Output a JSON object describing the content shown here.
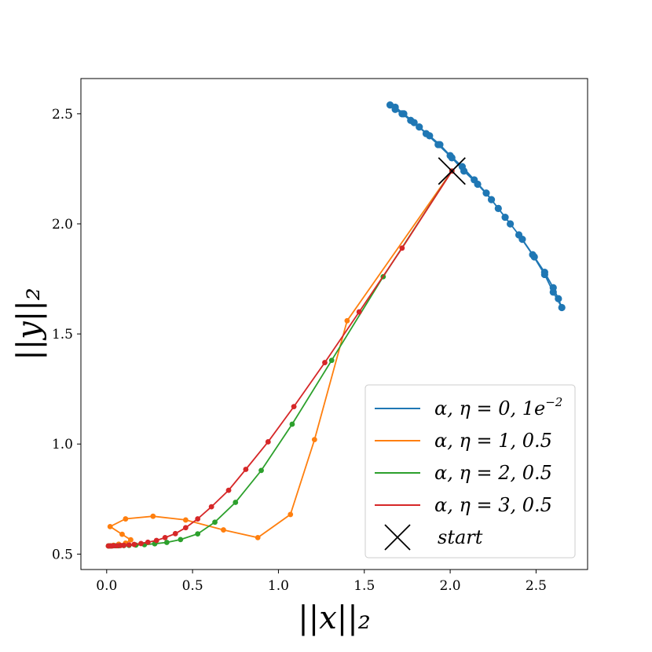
{
  "chart_data": {
    "type": "line",
    "xlabel": "||x||₂",
    "ylabel": "||y||₂",
    "xlim": [
      -0.15,
      2.8
    ],
    "ylim": [
      0.43,
      2.66
    ],
    "xticks": [
      "0.0",
      "0.5",
      "1.0",
      "1.5",
      "2.0",
      "2.5"
    ],
    "xtick_values": [
      0.0,
      0.5,
      1.0,
      1.5,
      2.0,
      2.5
    ],
    "yticks": [
      "0.5",
      "1.0",
      "1.5",
      "2.0",
      "2.5"
    ],
    "ytick_values": [
      0.5,
      1.0,
      1.5,
      2.0,
      2.5
    ],
    "grid": false,
    "legend_position": "lower-right",
    "start_point": {
      "x": 2.01,
      "y": 2.24,
      "label": "start"
    },
    "series": [
      {
        "name": "α, η = 0, 1e⁻²",
        "color": "#1f77b4",
        "markers": true,
        "x": [
          1.65,
          1.68,
          1.72,
          1.77,
          1.82,
          1.88,
          1.94,
          2.0,
          2.07,
          2.14,
          2.21,
          2.28,
          2.35,
          2.42,
          2.49,
          2.55,
          2.6,
          2.63,
          2.65,
          2.6,
          2.55,
          2.48,
          2.4,
          2.32,
          2.24,
          2.16,
          2.08,
          2.01,
          1.93,
          1.86,
          1.79,
          1.73,
          1.68
        ],
        "y": [
          2.54,
          2.52,
          2.5,
          2.47,
          2.44,
          2.4,
          2.36,
          2.31,
          2.26,
          2.2,
          2.14,
          2.07,
          2.0,
          1.93,
          1.85,
          1.78,
          1.71,
          1.66,
          1.62,
          1.69,
          1.77,
          1.86,
          1.95,
          2.03,
          2.11,
          2.18,
          2.24,
          2.3,
          2.36,
          2.41,
          2.46,
          2.5,
          2.53
        ]
      },
      {
        "name": "α, η = 1, 0.5",
        "color": "#ff7f0e",
        "markers": true,
        "x": [
          2.01,
          1.4,
          1.21,
          1.07,
          0.88,
          0.68,
          0.46,
          0.27,
          0.11,
          0.02,
          0.09,
          0.14,
          0.11,
          0.07,
          0.04,
          0.02,
          0.01
        ],
        "y": [
          2.24,
          1.56,
          1.02,
          0.68,
          0.575,
          0.61,
          0.655,
          0.672,
          0.66,
          0.625,
          0.59,
          0.565,
          0.55,
          0.545,
          0.54,
          0.538,
          0.537
        ]
      },
      {
        "name": "α, η = 2, 0.5",
        "color": "#2ca02c",
        "markers": true,
        "x": [
          2.01,
          1.61,
          1.31,
          1.08,
          0.9,
          0.75,
          0.63,
          0.53,
          0.43,
          0.35,
          0.28,
          0.22,
          0.17,
          0.13,
          0.1,
          0.07,
          0.05,
          0.03,
          0.02,
          0.01
        ],
        "y": [
          2.24,
          1.76,
          1.38,
          1.09,
          0.88,
          0.735,
          0.645,
          0.592,
          0.566,
          0.553,
          0.547,
          0.543,
          0.541,
          0.54,
          0.539,
          0.538,
          0.538,
          0.537,
          0.537,
          0.537
        ]
      },
      {
        "name": "α, η = 3, 0.5",
        "color": "#d62728",
        "markers": true,
        "x": [
          2.01,
          1.72,
          1.47,
          1.27,
          1.09,
          0.94,
          0.81,
          0.71,
          0.61,
          0.53,
          0.46,
          0.4,
          0.34,
          0.29,
          0.24,
          0.2,
          0.16,
          0.13,
          0.1,
          0.08,
          0.06,
          0.04,
          0.03,
          0.02,
          0.01
        ],
        "y": [
          2.24,
          1.89,
          1.6,
          1.37,
          1.17,
          1.01,
          0.885,
          0.79,
          0.715,
          0.66,
          0.62,
          0.593,
          0.575,
          0.562,
          0.554,
          0.548,
          0.544,
          0.542,
          0.54,
          0.539,
          0.538,
          0.538,
          0.537,
          0.537,
          0.537
        ]
      }
    ]
  },
  "legend": {
    "entries": [
      {
        "prefix": "α, η = 0, 1e",
        "sup": "−2",
        "color": "#1f77b4"
      },
      {
        "prefix": "α, η = 1, 0.5",
        "sup": "",
        "color": "#ff7f0e"
      },
      {
        "prefix": "α, η = 2, 0.5",
        "sup": "",
        "color": "#2ca02c"
      },
      {
        "prefix": "α, η = 3, 0.5",
        "sup": "",
        "color": "#d62728"
      }
    ],
    "start_label": "start"
  }
}
